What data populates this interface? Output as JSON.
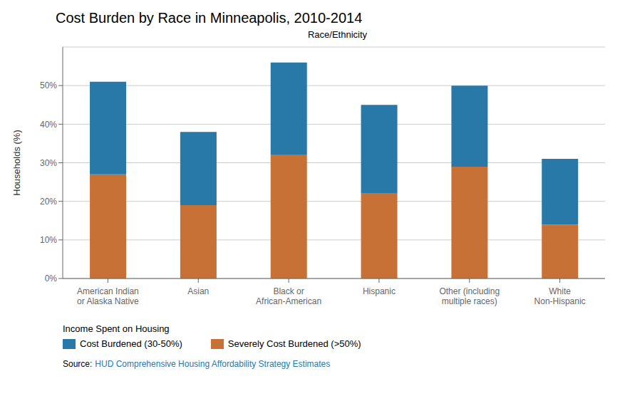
{
  "chart_data": {
    "type": "bar",
    "stacked": true,
    "title": "Cost Burden by Race in Minneapolis, 2010-2014",
    "x_label": "Race/Ethnicity",
    "y_label": "Households (%)",
    "categories": [
      "American Indian\nor Alaska Native",
      "Asian",
      "Black or\nAfrican-American",
      "Hispanic",
      "Other (including\nmultiple races)",
      "White\nNon-Hispanic"
    ],
    "series": [
      {
        "name": "Severely Cost Burdened (>50%)",
        "color": "#C87137",
        "values": [
          27,
          19,
          32,
          22,
          29,
          14
        ]
      },
      {
        "name": "Cost Burdened (30-50%)",
        "color": "#2878A8",
        "values": [
          24,
          19,
          24,
          23,
          21,
          17
        ]
      }
    ],
    "ylim": [
      0,
      60
    ],
    "yticks": [
      {
        "value": 0,
        "label": "0%"
      },
      {
        "value": 10,
        "label": "10%"
      },
      {
        "value": 20,
        "label": "20%"
      },
      {
        "value": 30,
        "label": "30%"
      },
      {
        "value": 40,
        "label": "40%"
      },
      {
        "value": 50,
        "label": "50%"
      }
    ],
    "grid": true,
    "legend_title": "Income Spent on Housing",
    "annotations": [
      "Source:",
      "HUD Comprehensive Housing Affordability Strategy Estimates"
    ],
    "annotation_colors": [
      "#000000",
      "#2878A8"
    ]
  }
}
